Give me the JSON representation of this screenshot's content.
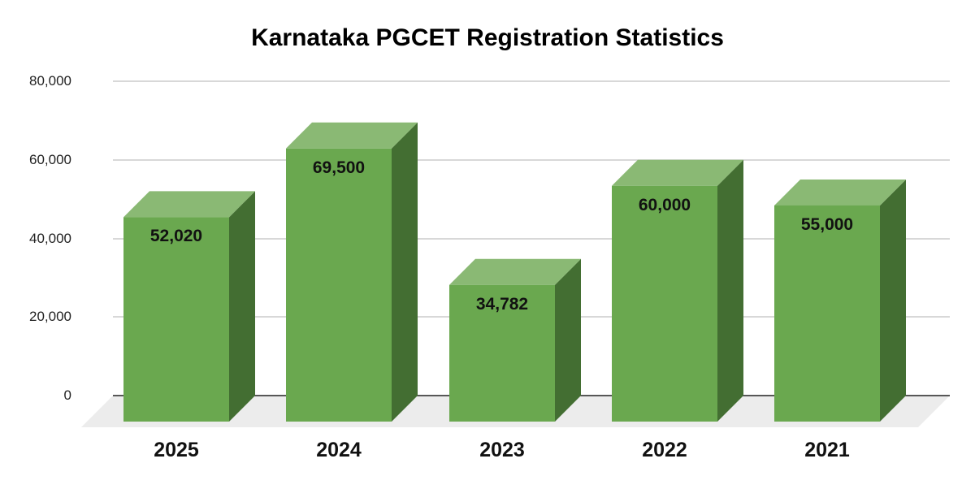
{
  "chart_data": {
    "type": "bar",
    "subtype": "3d-column",
    "title": "Karnataka PGCET Registration Statistics",
    "xlabel": "",
    "ylabel": "",
    "categories": [
      "2025",
      "2024",
      "2023",
      "2022",
      "2021"
    ],
    "values": [
      52020,
      69500,
      34782,
      60000,
      55000
    ],
    "data_labels": [
      "52,020",
      "69,500",
      "34,782",
      "60,000",
      "55,000"
    ],
    "ylim": [
      0,
      80000
    ],
    "yticks": [
      "80,000",
      "60,000",
      "40,000",
      "20,000",
      "0"
    ],
    "grid": true,
    "legend": null,
    "colors": {
      "front": "#6aa84f",
      "top": "#8ab974",
      "side": "#436e32",
      "floor": "#ececec",
      "grid": "#cccccc"
    }
  }
}
